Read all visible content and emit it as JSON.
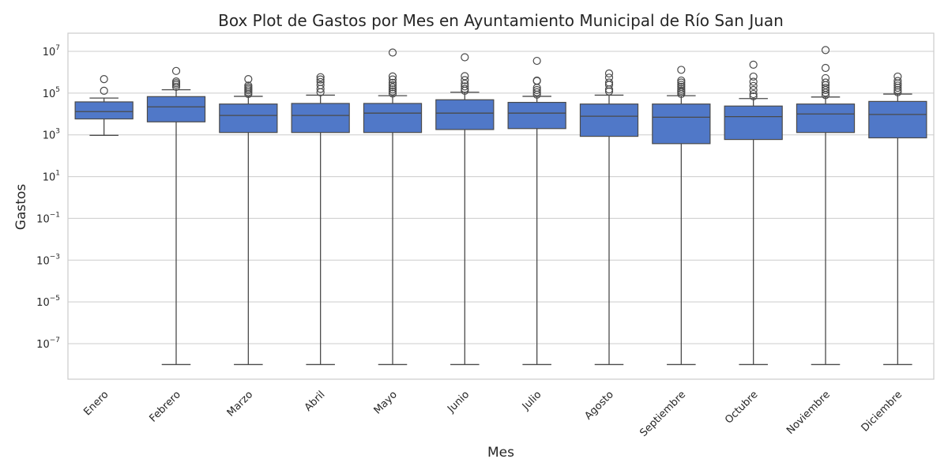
{
  "chart_data": {
    "type": "box",
    "title": "Box Plot de Gastos por Mes en Ayuntamiento Municipal de Río San Juan",
    "xlabel": "Mes",
    "ylabel": "Gastos",
    "yscale": "log",
    "ylim": [
      1e-09,
      60000000.0
    ],
    "y_ticks": [
      {
        "base": "10",
        "exp": "7",
        "value": 10000000.0
      },
      {
        "base": "10",
        "exp": "5",
        "value": 100000.0
      },
      {
        "base": "10",
        "exp": "3",
        "value": 1000.0
      },
      {
        "base": "10",
        "exp": "1",
        "value": 10.0
      },
      {
        "base": "10",
        "exp": "−1",
        "value": 0.1
      },
      {
        "base": "10",
        "exp": "−3",
        "value": 0.001
      },
      {
        "base": "10",
        "exp": "−5",
        "value": 1e-05
      },
      {
        "base": "10",
        "exp": "−7",
        "value": 1e-07
      }
    ],
    "grid": true,
    "box_color": "#5078c8",
    "line_color": "#4a4a4a",
    "categories": [
      "Enero",
      "Febrero",
      "Marzo",
      "Abril",
      "Mayo",
      "Junio",
      "Julio",
      "Agosto",
      "Septiembre",
      "Octubre",
      "Noviembre",
      "Diciembre"
    ],
    "boxes": [
      {
        "month": "Enero",
        "whisker_low": 950,
        "q1": 5800,
        "median": 13000,
        "q3": 38000,
        "whisker_high": 58000,
        "outliers": [
          130000,
          470000
        ]
      },
      {
        "month": "Febrero",
        "whisker_low": 1e-08,
        "q1": 4200,
        "median": 22000,
        "q3": 68000,
        "whisker_high": 145000,
        "outliers": [
          200000,
          250000,
          300000,
          360000,
          1150000
        ]
      },
      {
        "month": "Marzo",
        "whisker_low": 1e-08,
        "q1": 1300,
        "median": 8500,
        "q3": 30000,
        "whisker_high": 70000,
        "outliers": [
          90000,
          110000,
          135000,
          160000,
          190000,
          230000,
          470000
        ]
      },
      {
        "month": "Abril",
        "whisker_low": 1e-08,
        "q1": 1300,
        "median": 8500,
        "q3": 32000,
        "whisker_high": 80000,
        "outliers": [
          110000,
          160000,
          240000,
          340000,
          450000,
          580000
        ]
      },
      {
        "month": "Mayo",
        "whisker_low": 1e-08,
        "q1": 1300,
        "median": 11000,
        "q3": 32000,
        "whisker_high": 75000,
        "outliers": [
          95000,
          120000,
          150000,
          190000,
          240000,
          310000,
          450000,
          630000,
          8800000
        ]
      },
      {
        "month": "Junio",
        "whisker_low": 1e-08,
        "q1": 1800,
        "median": 11000,
        "q3": 48000,
        "whisker_high": 110000,
        "outliers": [
          130000,
          160000,
          210000,
          280000,
          420000,
          650000,
          5200000
        ]
      },
      {
        "month": "Julio",
        "whisker_low": 1e-08,
        "q1": 2000,
        "median": 11000,
        "q3": 36000,
        "whisker_high": 70000,
        "outliers": [
          85000,
          110000,
          140000,
          180000,
          380000,
          400000,
          3500000
        ]
      },
      {
        "month": "Agosto",
        "whisker_low": 1e-08,
        "q1": 850,
        "median": 7800,
        "q3": 30000,
        "whisker_high": 80000,
        "outliers": [
          120000,
          150000,
          250000,
          320000,
          550000,
          870000
        ]
      },
      {
        "month": "Septiembre",
        "whisker_low": 1e-08,
        "q1": 380,
        "median": 7000,
        "q3": 30000,
        "whisker_high": 75000,
        "outliers": [
          90000,
          110000,
          130000,
          160000,
          200000,
          250000,
          320000,
          400000,
          1300000
        ]
      },
      {
        "month": "Octubre",
        "whisker_low": 1e-08,
        "q1": 600,
        "median": 7500,
        "q3": 24000,
        "whisker_high": 55000,
        "outliers": [
          70000,
          90000,
          140000,
          220000,
          350000,
          620000,
          2300000
        ]
      },
      {
        "month": "Noviembre",
        "whisker_low": 1e-08,
        "q1": 1300,
        "median": 10000,
        "q3": 30000,
        "whisker_high": 65000,
        "outliers": [
          80000,
          105000,
          140000,
          180000,
          240000,
          320000,
          520000,
          1600000,
          11500000
        ]
      },
      {
        "month": "Diciembre",
        "whisker_low": 1e-08,
        "q1": 720,
        "median": 9500,
        "q3": 40000,
        "whisker_high": 90000,
        "outliers": [
          110000,
          140000,
          180000,
          230000,
          290000,
          380000,
          620000
        ]
      }
    ]
  }
}
